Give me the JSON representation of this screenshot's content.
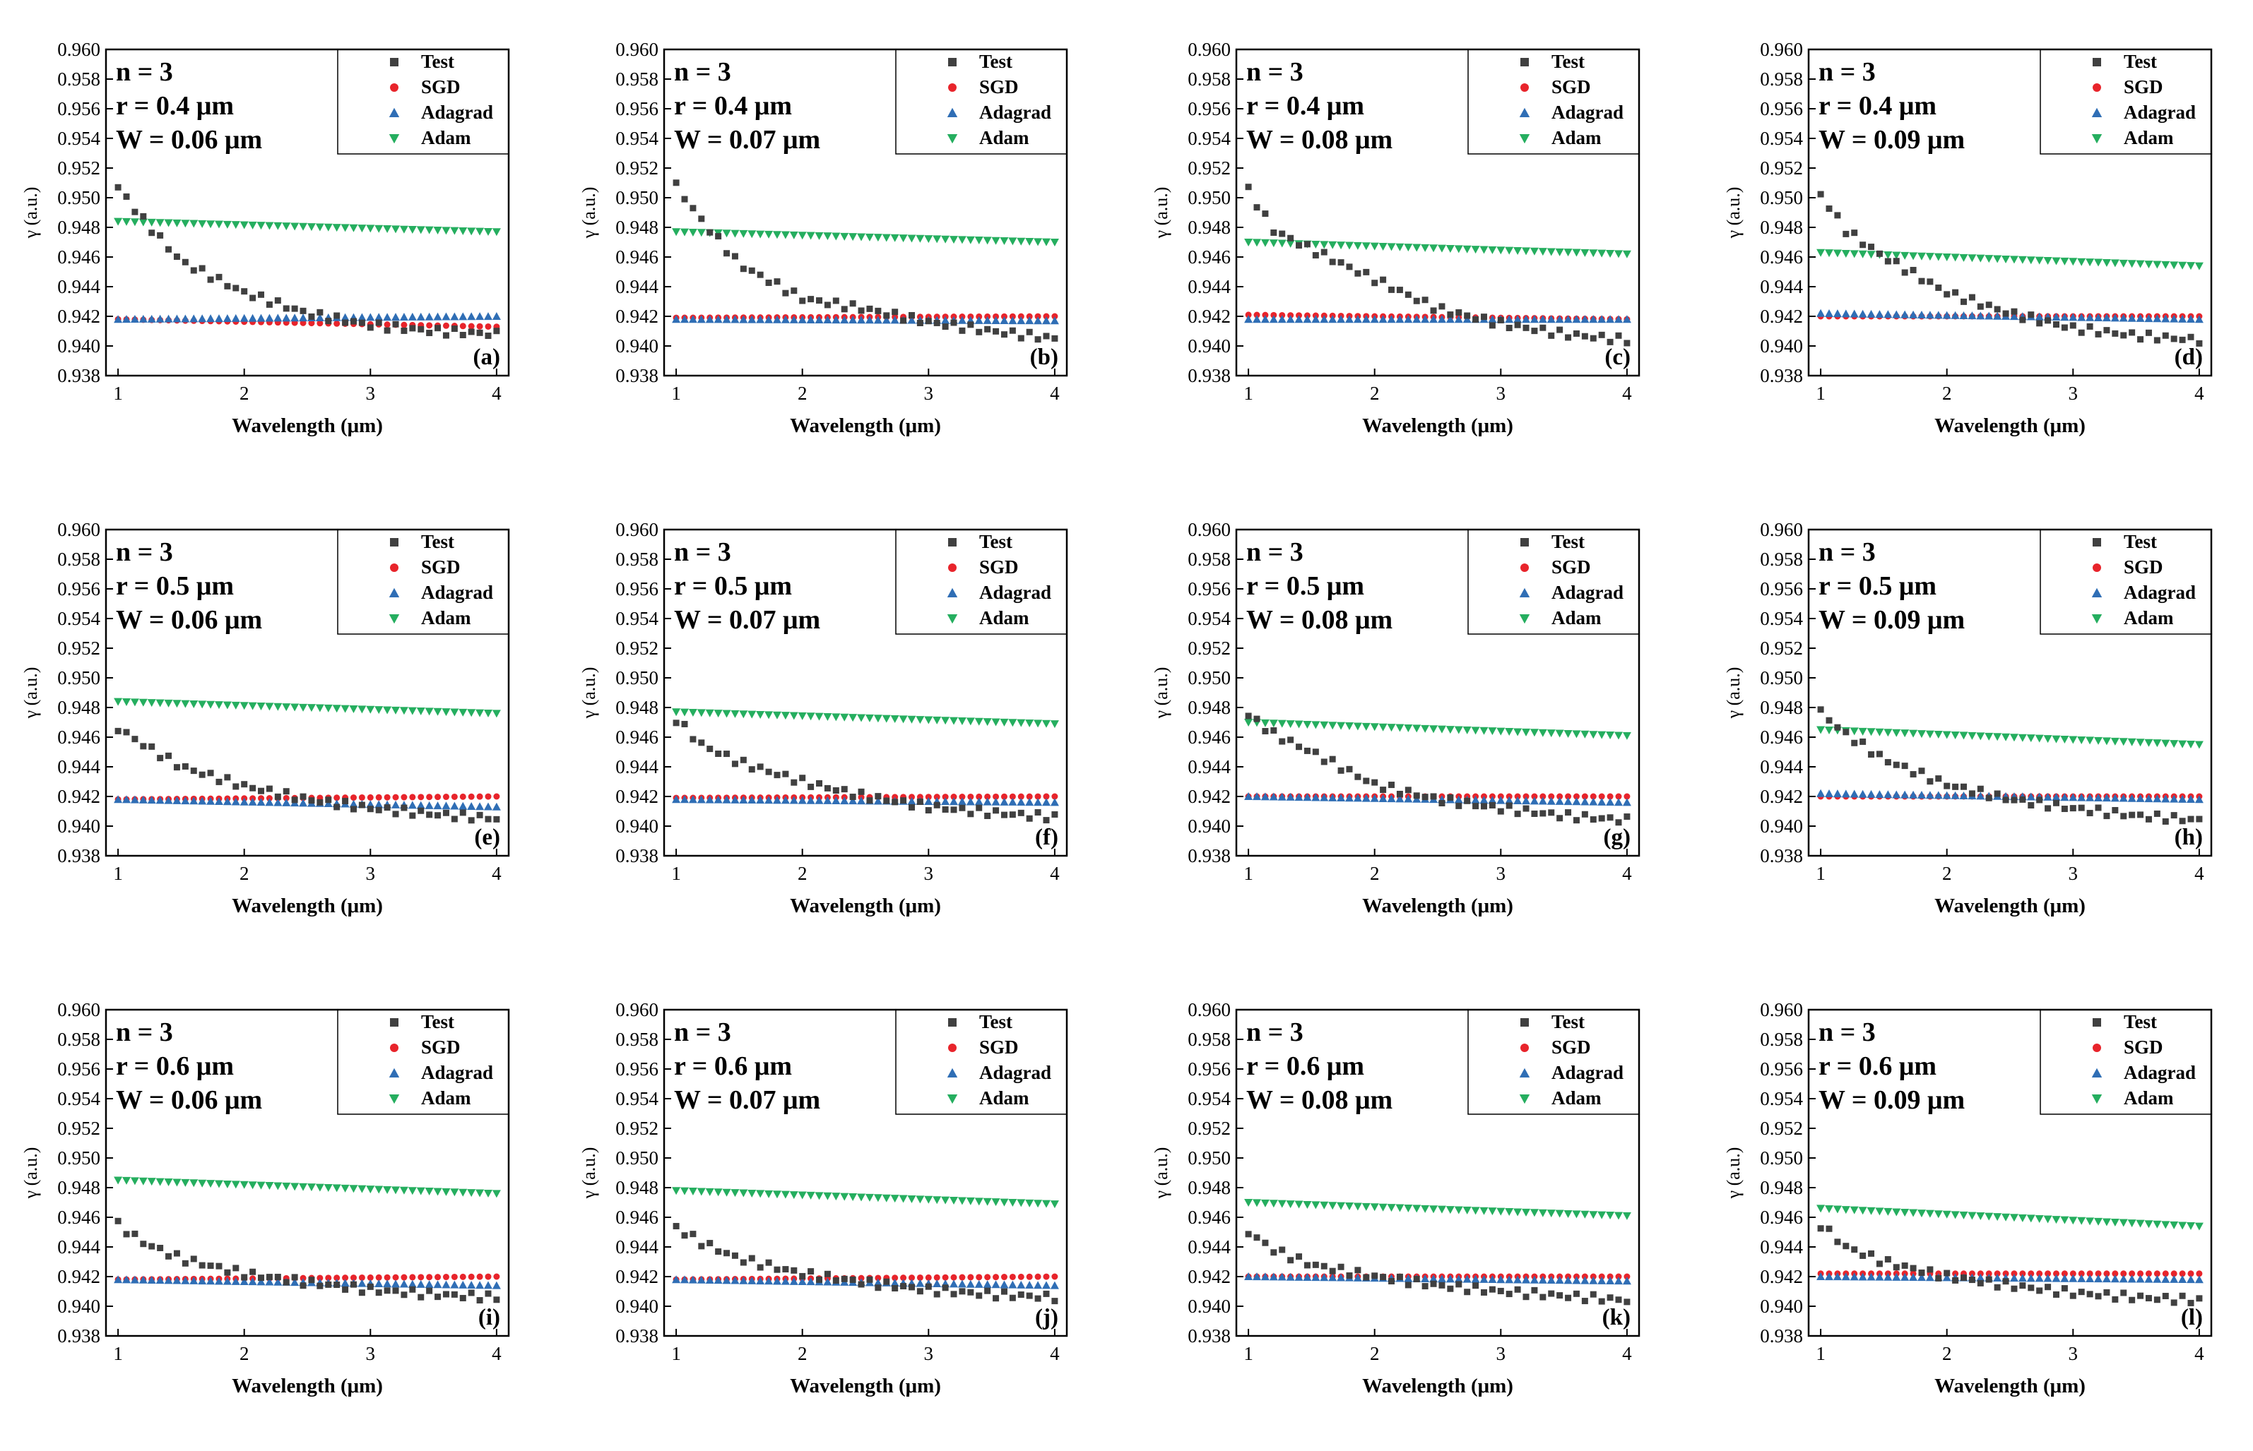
{
  "figure": {
    "columns": 4,
    "x_axis_label": "Wavelength (μm)",
    "y_axis_label": "γ (a.u.)",
    "x_ticks": [
      "1",
      "2",
      "3",
      "4"
    ],
    "y_ticks": [
      "0.938",
      "0.940",
      "0.942",
      "0.944",
      "0.946",
      "0.948",
      "0.950",
      "0.952",
      "0.954",
      "0.956",
      "0.958",
      "0.960"
    ],
    "legend": [
      {
        "name": "Test",
        "color": "#404040",
        "marker": "square"
      },
      {
        "name": "SGD",
        "color": "#e8242b",
        "marker": "circle"
      },
      {
        "name": "Adagrad",
        "color": "#2f6eb5",
        "marker": "triangle-up"
      },
      {
        "name": "Adam",
        "color": "#25ae5f",
        "marker": "triangle-down"
      }
    ]
  },
  "chart_data": [
    {
      "label": "(a)",
      "type": "scatter",
      "params": [
        "n = 3",
        "r = 0.4 μm",
        "W = 0.06 μm"
      ],
      "xlim": [
        1,
        4
      ],
      "ylim": [
        0.938,
        0.96
      ],
      "test": [
        [
          1.0,
          0.9507
        ],
        [
          1.2,
          0.9485
        ],
        [
          1.5,
          0.9457
        ],
        [
          2.0,
          0.9436
        ],
        [
          2.5,
          0.9422
        ],
        [
          3.0,
          0.9414
        ],
        [
          3.5,
          0.941
        ],
        [
          4.0,
          0.9408
        ]
      ],
      "sgd": [
        0.9418,
        0.9413
      ],
      "adagrad": [
        0.9418,
        0.942
      ],
      "adam": [
        0.9484,
        0.9477
      ]
    },
    {
      "label": "(b)",
      "type": "scatter",
      "params": [
        "n = 3",
        "r = 0.4 μm",
        "W = 0.07 μm"
      ],
      "xlim": [
        1,
        4
      ],
      "ylim": [
        0.938,
        0.96
      ],
      "test": [
        [
          1.0,
          0.9508
        ],
        [
          1.2,
          0.9485
        ],
        [
          1.5,
          0.9455
        ],
        [
          2.0,
          0.9432
        ],
        [
          2.5,
          0.9425
        ],
        [
          3.0,
          0.9416
        ],
        [
          3.5,
          0.941
        ],
        [
          4.0,
          0.9405
        ]
      ],
      "sgd": [
        0.9419,
        0.942
      ],
      "adagrad": [
        0.9418,
        0.9417
      ],
      "adam": [
        0.9477,
        0.947
      ]
    },
    {
      "label": "(c)",
      "type": "scatter",
      "params": [
        "n = 3",
        "r = 0.4 μm",
        "W = 0.08 μm"
      ],
      "xlim": [
        1,
        4
      ],
      "ylim": [
        0.938,
        0.96
      ],
      "test": [
        [
          1.0,
          0.9505
        ],
        [
          1.2,
          0.9478
        ],
        [
          1.5,
          0.9465
        ],
        [
          2.0,
          0.9445
        ],
        [
          2.5,
          0.9425
        ],
        [
          3.0,
          0.9415
        ],
        [
          3.5,
          0.9408
        ],
        [
          4.0,
          0.9404
        ]
      ],
      "sgd": [
        0.9421,
        0.9418
      ],
      "adagrad": [
        0.9418,
        0.9418
      ],
      "adam": [
        0.947,
        0.9462
      ]
    },
    {
      "label": "(d)",
      "type": "scatter",
      "params": [
        "n = 3",
        "r = 0.4 μm",
        "W = 0.09 μm"
      ],
      "xlim": [
        1,
        4
      ],
      "ylim": [
        0.938,
        0.96
      ],
      "test": [
        [
          1.0,
          0.9502
        ],
        [
          1.2,
          0.9478
        ],
        [
          1.5,
          0.946
        ],
        [
          2.0,
          0.9436
        ],
        [
          2.5,
          0.9422
        ],
        [
          3.0,
          0.9412
        ],
        [
          3.5,
          0.9407
        ],
        [
          4.0,
          0.9404
        ]
      ],
      "sgd": [
        0.942,
        0.942
      ],
      "adagrad": [
        0.9422,
        0.9418
      ],
      "adam": [
        0.9463,
        0.9454
      ]
    },
    {
      "label": "(e)",
      "type": "scatter",
      "params": [
        "n = 3",
        "r = 0.5 μm",
        "W = 0.06 μm"
      ],
      "xlim": [
        1,
        4
      ],
      "ylim": [
        0.938,
        0.96
      ],
      "test": [
        [
          1.0,
          0.9466
        ],
        [
          1.2,
          0.9455
        ],
        [
          1.5,
          0.944
        ],
        [
          2.0,
          0.9427
        ],
        [
          2.5,
          0.9418
        ],
        [
          3.0,
          0.9412
        ],
        [
          3.5,
          0.9408
        ],
        [
          4.0,
          0.9405
        ]
      ],
      "sgd": [
        0.9418,
        0.942
      ],
      "adagrad": [
        0.9418,
        0.9413
      ],
      "adam": [
        0.9484,
        0.9476
      ]
    },
    {
      "label": "(f)",
      "type": "scatter",
      "params": [
        "n = 3",
        "r = 0.5 μm",
        "W = 0.07 μm"
      ],
      "xlim": [
        1,
        4
      ],
      "ylim": [
        0.938,
        0.96
      ],
      "test": [
        [
          1.0,
          0.9472
        ],
        [
          1.2,
          0.9455
        ],
        [
          1.5,
          0.9443
        ],
        [
          2.0,
          0.943
        ],
        [
          2.5,
          0.942
        ],
        [
          3.0,
          0.9413
        ],
        [
          3.5,
          0.9409
        ],
        [
          4.0,
          0.9406
        ]
      ],
      "sgd": [
        0.9419,
        0.942
      ],
      "adagrad": [
        0.9418,
        0.9416
      ],
      "adam": [
        0.9477,
        0.9469
      ]
    },
    {
      "label": "(g)",
      "type": "scatter",
      "params": [
        "n = 3",
        "r = 0.5 μm",
        "W = 0.08 μm"
      ],
      "xlim": [
        1,
        4
      ],
      "ylim": [
        0.938,
        0.96
      ],
      "test": [
        [
          1.0,
          0.9475
        ],
        [
          1.2,
          0.9462
        ],
        [
          1.5,
          0.945
        ],
        [
          2.0,
          0.9428
        ],
        [
          2.5,
          0.9418
        ],
        [
          3.0,
          0.9412
        ],
        [
          3.5,
          0.9407
        ],
        [
          4.0,
          0.9404
        ]
      ],
      "sgd": [
        0.942,
        0.942
      ],
      "adagrad": [
        0.942,
        0.9416
      ],
      "adam": [
        0.947,
        0.9461
      ]
    },
    {
      "label": "(h)",
      "type": "scatter",
      "params": [
        "n = 3",
        "r = 0.5 μm",
        "W = 0.09 μm"
      ],
      "xlim": [
        1,
        4
      ],
      "ylim": [
        0.938,
        0.96
      ],
      "test": [
        [
          1.0,
          0.9477
        ],
        [
          1.2,
          0.9462
        ],
        [
          1.5,
          0.9445
        ],
        [
          2.0,
          0.9428
        ],
        [
          2.5,
          0.9418
        ],
        [
          3.0,
          0.9412
        ],
        [
          3.5,
          0.9407
        ],
        [
          4.0,
          0.9404
        ]
      ],
      "sgd": [
        0.942,
        0.942
      ],
      "adagrad": [
        0.9422,
        0.9418
      ],
      "adam": [
        0.9465,
        0.9455
      ]
    },
    {
      "label": "(i)",
      "type": "scatter",
      "params": [
        "n = 3",
        "r = 0.6 μm",
        "W = 0.06 μm"
      ],
      "xlim": [
        1,
        4
      ],
      "ylim": [
        0.938,
        0.96
      ],
      "test": [
        [
          1.0,
          0.9455
        ],
        [
          1.2,
          0.9443
        ],
        [
          1.5,
          0.9432
        ],
        [
          2.0,
          0.9422
        ],
        [
          2.5,
          0.9416
        ],
        [
          3.0,
          0.9411
        ],
        [
          3.5,
          0.9408
        ],
        [
          4.0,
          0.9406
        ]
      ],
      "sgd": [
        0.9418,
        0.942
      ],
      "adagrad": [
        0.9418,
        0.9414
      ],
      "adam": [
        0.9485,
        0.9476
      ]
    },
    {
      "label": "(j)",
      "type": "scatter",
      "params": [
        "n = 3",
        "r = 0.6 μm",
        "W = 0.07 μm"
      ],
      "xlim": [
        1,
        4
      ],
      "ylim": [
        0.938,
        0.96
      ],
      "test": [
        [
          1.0,
          0.9453
        ],
        [
          1.2,
          0.9443
        ],
        [
          1.5,
          0.9432
        ],
        [
          2.0,
          0.9422
        ],
        [
          2.5,
          0.9416
        ],
        [
          3.0,
          0.9411
        ],
        [
          3.5,
          0.9408
        ],
        [
          4.0,
          0.9406
        ]
      ],
      "sgd": [
        0.9418,
        0.942
      ],
      "adagrad": [
        0.9418,
        0.9414
      ],
      "adam": [
        0.9478,
        0.9469
      ]
    },
    {
      "label": "(k)",
      "type": "scatter",
      "params": [
        "n = 3",
        "r = 0.6 μm",
        "W = 0.08 μm"
      ],
      "xlim": [
        1,
        4
      ],
      "ylim": [
        0.938,
        0.96
      ],
      "test": [
        [
          1.0,
          0.945
        ],
        [
          1.2,
          0.9438
        ],
        [
          1.5,
          0.9428
        ],
        [
          2.0,
          0.942
        ],
        [
          2.5,
          0.9414
        ],
        [
          3.0,
          0.941
        ],
        [
          3.5,
          0.9407
        ],
        [
          4.0,
          0.9404
        ]
      ],
      "sgd": [
        0.942,
        0.942
      ],
      "adagrad": [
        0.942,
        0.9417
      ],
      "adam": [
        0.947,
        0.9461
      ]
    },
    {
      "label": "(l)",
      "type": "scatter",
      "params": [
        "n = 3",
        "r = 0.6 μm",
        "W = 0.09 μm"
      ],
      "xlim": [
        1,
        4
      ],
      "ylim": [
        0.938,
        0.96
      ],
      "test": [
        [
          1.0,
          0.9455
        ],
        [
          1.2,
          0.944
        ],
        [
          1.5,
          0.943
        ],
        [
          2.0,
          0.942
        ],
        [
          2.5,
          0.9414
        ],
        [
          3.0,
          0.9409
        ],
        [
          3.5,
          0.9406
        ],
        [
          4.0,
          0.9404
        ]
      ],
      "sgd": [
        0.9422,
        0.9422
      ],
      "adagrad": [
        0.942,
        0.9418
      ],
      "adam": [
        0.9466,
        0.9454
      ]
    }
  ]
}
